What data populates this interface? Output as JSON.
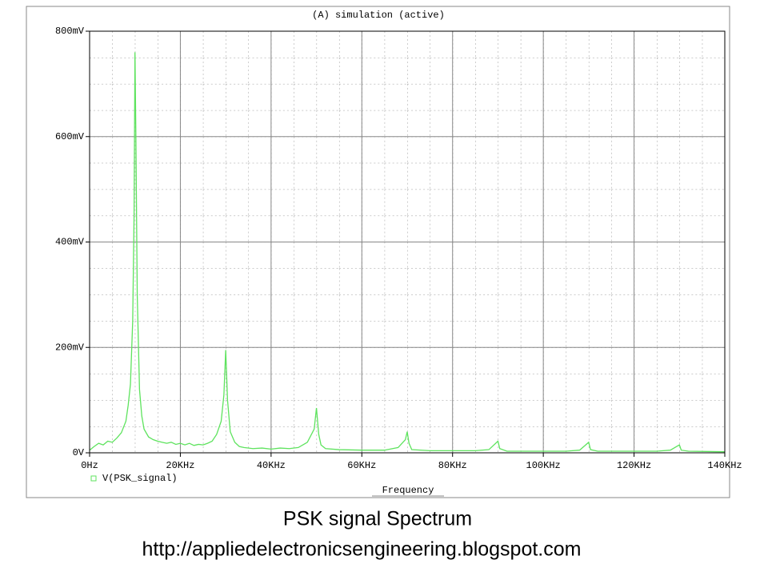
{
  "chart_data": {
    "type": "line",
    "title": "(A) simulation (active)",
    "x_label": "Frequency",
    "caption": "PSK signal Spectrum",
    "url": "http://appliedelectronicsengineering.blogspot.com",
    "xlim": [
      0,
      140
    ],
    "ylim": [
      0,
      800
    ],
    "xticks": [
      {
        "value": 0,
        "label": "0Hz"
      },
      {
        "value": 20,
        "label": "20KHz"
      },
      {
        "value": 40,
        "label": "40KHz"
      },
      {
        "value": 60,
        "label": "60KHz"
      },
      {
        "value": 80,
        "label": "80KHz"
      },
      {
        "value": 100,
        "label": "100KHz"
      },
      {
        "value": 120,
        "label": "120KHz"
      },
      {
        "value": 140,
        "label": "140KHz"
      }
    ],
    "yticks": [
      {
        "value": 0,
        "label": "0V"
      },
      {
        "value": 200,
        "label": "200mV"
      },
      {
        "value": 400,
        "label": "400mV"
      },
      {
        "value": 600,
        "label": "600mV"
      },
      {
        "value": 800,
        "label": "800mV"
      }
    ],
    "grid": true,
    "x": [
      0,
      1,
      2,
      3,
      4,
      5,
      6,
      7,
      8,
      8.5,
      9,
      9.5,
      9.8,
      10,
      10.2,
      10.5,
      11,
      11.5,
      12,
      13,
      14,
      15,
      16,
      17,
      18,
      19,
      20,
      21,
      22,
      23,
      24,
      25,
      26,
      27,
      28,
      29,
      29.6,
      30,
      30.4,
      31,
      32,
      33,
      34,
      36,
      38,
      40,
      42,
      44,
      46,
      48,
      49.5,
      50,
      50.5,
      51,
      52,
      55,
      60,
      65,
      68,
      69.6,
      70,
      70.4,
      71,
      75,
      80,
      85,
      88,
      90,
      90.4,
      92,
      100,
      105,
      108,
      110,
      110.4,
      112,
      120,
      125,
      128,
      130,
      130.4,
      132,
      140
    ],
    "series": [
      {
        "name": "V(PSK_signal)",
        "color": "#5ee35e",
        "values": [
          5,
          12,
          18,
          15,
          22,
          20,
          28,
          38,
          60,
          90,
          130,
          250,
          450,
          760,
          600,
          300,
          120,
          70,
          45,
          30,
          25,
          22,
          20,
          18,
          20,
          16,
          18,
          15,
          18,
          14,
          16,
          15,
          18,
          22,
          35,
          60,
          110,
          195,
          100,
          40,
          20,
          12,
          10,
          8,
          9,
          7,
          9,
          8,
          10,
          20,
          45,
          85,
          35,
          15,
          8,
          6,
          5,
          5,
          10,
          25,
          40,
          18,
          6,
          4,
          4,
          4,
          6,
          22,
          8,
          3,
          3,
          3,
          5,
          20,
          6,
          3,
          3,
          3,
          5,
          15,
          5,
          3,
          2
        ]
      }
    ]
  }
}
